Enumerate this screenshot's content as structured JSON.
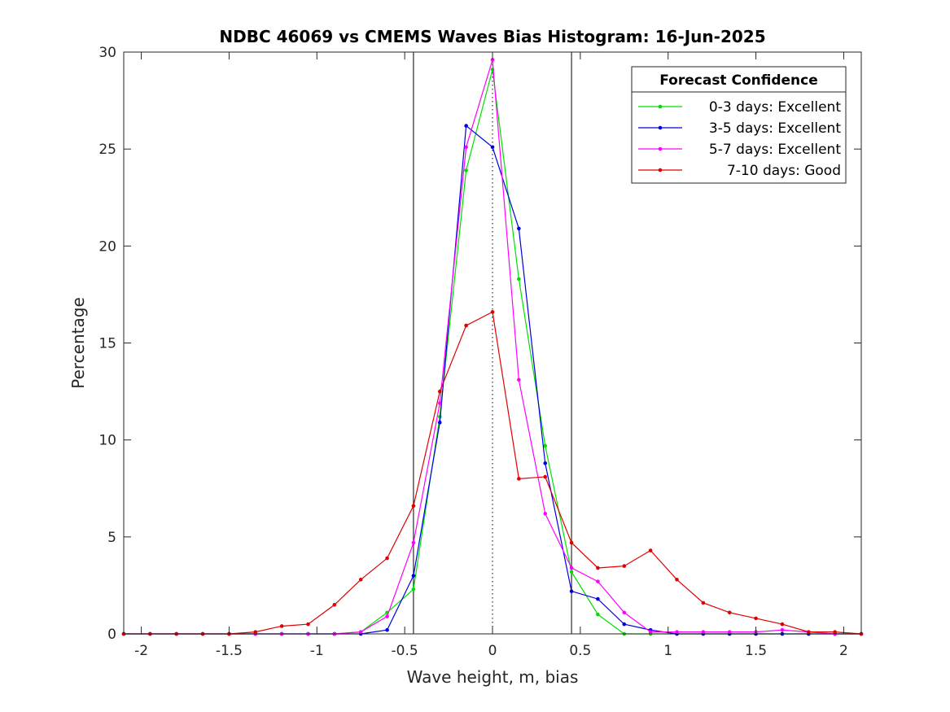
{
  "chart_data": {
    "type": "line",
    "title": "NDBC 46069 vs CMEMS Waves Bias Histogram: 16-Jun-2025",
    "xlabel": "Wave height, m, bias",
    "ylabel": "Percentage",
    "xlim": [
      -2.1,
      2.1
    ],
    "ylim": [
      0,
      30
    ],
    "xticks": [
      -2,
      -1.5,
      -1,
      -0.5,
      0,
      0.5,
      1,
      1.5,
      2
    ],
    "xtick_labels": [
      "-2",
      "-1.5",
      "-1",
      "-0.5",
      "0",
      "0.5",
      "1",
      "1.5",
      "2"
    ],
    "yticks": [
      0,
      5,
      10,
      15,
      20,
      25,
      30
    ],
    "ytick_labels": [
      "0",
      "5",
      "10",
      "15",
      "20",
      "25",
      "30"
    ],
    "grid": false,
    "reference_lines": {
      "solid_x": [
        -0.45,
        0.45
      ],
      "dotted_x": [
        0
      ]
    },
    "legend": {
      "title": "Forecast Confidence",
      "placement": "top-right"
    },
    "x": [
      -2.1,
      -1.95,
      -1.8,
      -1.65,
      -1.5,
      -1.35,
      -1.2,
      -1.05,
      -0.9,
      -0.75,
      -0.6,
      -0.45,
      -0.3,
      -0.15,
      0,
      0.15,
      0.3,
      0.45,
      0.6,
      0.75,
      0.9,
      1.05,
      1.2,
      1.35,
      1.5,
      1.65,
      1.8,
      1.95,
      2.1
    ],
    "series": [
      {
        "name": "0-3 days: Excellent",
        "color": "#00e000",
        "values": [
          0,
          0,
          0,
          0,
          0,
          0,
          0,
          0,
          0,
          0.1,
          1.1,
          2.3,
          11.2,
          23.9,
          29.1,
          18.3,
          9.7,
          3.2,
          1.0,
          0,
          0,
          0,
          0,
          0,
          0,
          0,
          0,
          0,
          0
        ]
      },
      {
        "name": "3-5 days: Excellent",
        "color": "#0000e0",
        "values": [
          0,
          0,
          0,
          0,
          0,
          0,
          0,
          0,
          0,
          0,
          0.2,
          3.0,
          10.9,
          26.2,
          25.1,
          20.9,
          8.8,
          2.2,
          1.8,
          0.5,
          0.2,
          0,
          0,
          0,
          0,
          0,
          0,
          0,
          0
        ]
      },
      {
        "name": "5-7 days: Excellent",
        "color": "#ff00ff",
        "values": [
          0,
          0,
          0,
          0,
          0,
          0,
          0,
          0,
          0,
          0.1,
          0.9,
          4.7,
          11.9,
          25.1,
          29.6,
          13.1,
          6.2,
          3.4,
          2.7,
          1.1,
          0.1,
          0.1,
          0.1,
          0.1,
          0.1,
          0.2,
          0.1,
          0,
          0
        ]
      },
      {
        "name": "7-10 days: Good",
        "color": "#e00000",
        "values": [
          0,
          0,
          0,
          0,
          0,
          0.1,
          0.4,
          0.5,
          1.5,
          2.8,
          3.9,
          6.6,
          12.5,
          15.9,
          16.6,
          8.0,
          8.1,
          4.7,
          3.4,
          3.5,
          4.3,
          2.8,
          1.6,
          1.1,
          0.8,
          0.5,
          0.1,
          0.1,
          0
        ]
      }
    ]
  }
}
